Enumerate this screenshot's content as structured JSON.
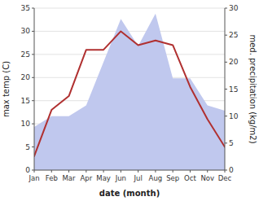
{
  "chart_data": {
    "type": "line",
    "categories": [
      "Jan",
      "Feb",
      "Mar",
      "Apr",
      "May",
      "Jun",
      "Jul",
      "Aug",
      "Sep",
      "Oct",
      "Nov",
      "Dec"
    ],
    "series": [
      {
        "type": "area",
        "axis": "y2",
        "color": "#c0c8ee",
        "values": [
          8,
          10,
          10,
          12,
          20,
          28,
          23,
          29,
          17,
          17,
          12,
          11
        ]
      },
      {
        "type": "line",
        "color": "#b03030",
        "values": [
          3,
          13,
          16,
          26,
          26,
          30,
          27,
          28,
          27,
          18,
          11,
          5
        ]
      }
    ],
    "xlabel": "date (month)",
    "ylabel": "max temp (C)",
    "y2label": "med. precipitation (kg/m2)",
    "ylim": [
      0,
      35
    ],
    "yticks": [
      0,
      5,
      10,
      15,
      20,
      25,
      30,
      35
    ],
    "y2lim": [
      0,
      30
    ],
    "y2ticks": [
      0,
      5,
      10,
      15,
      20,
      25,
      30
    ],
    "grid": true
  }
}
